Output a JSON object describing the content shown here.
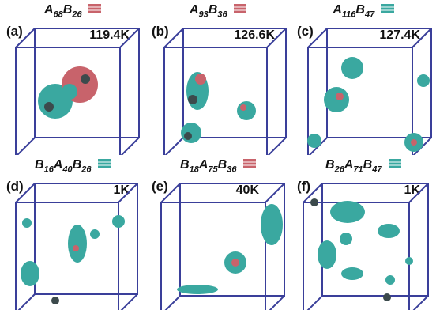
{
  "panels": [
    {
      "label": "(a)",
      "title_parts": [
        "A",
        "68",
        "B",
        "26"
      ],
      "temperature": "119.4K"
    },
    {
      "label": "(b)",
      "title_parts": [
        "A",
        "93",
        "B",
        "36"
      ],
      "temperature": "126.6K"
    },
    {
      "label": "(c)",
      "title_parts": [
        "A",
        "116",
        "B",
        "47"
      ],
      "temperature": "127.4K"
    },
    {
      "label": "(d)",
      "title_parts": [
        "B",
        "16",
        "A",
        "40",
        "B",
        "26"
      ],
      "temperature": "1K"
    },
    {
      "label": "(e)",
      "title_parts": [
        "B",
        "18",
        "A",
        "75",
        "B",
        "36"
      ],
      "temperature": "40K"
    },
    {
      "label": "(f)",
      "title_parts": [
        "B",
        "26",
        "A",
        "71",
        "B",
        "47"
      ],
      "temperature": "1K"
    }
  ],
  "colors": {
    "box_edge": "#3a3f9a",
    "cluster_teal": "#3aa8a0",
    "cluster_red": "#c8636b",
    "cluster_dark": "#3c4a4c"
  },
  "icons": [
    "stacked-molecule-icon"
  ]
}
